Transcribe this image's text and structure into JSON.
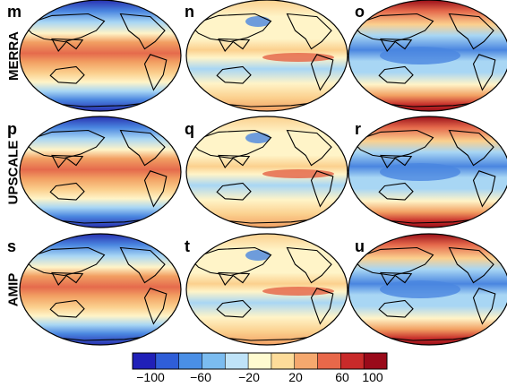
{
  "rows": [
    {
      "label": "MERRA",
      "panels": [
        {
          "letter": "m",
          "style": "warm-belt"
        },
        {
          "letter": "n",
          "style": "anomaly-neutral"
        },
        {
          "letter": "o",
          "style": "polar-warm"
        }
      ]
    },
    {
      "label": "UPSCALE",
      "panels": [
        {
          "letter": "p",
          "style": "warm-belt"
        },
        {
          "letter": "q",
          "style": "anomaly-neutral"
        },
        {
          "letter": "r",
          "style": "polar-warm"
        }
      ]
    },
    {
      "label": "AMIP",
      "panels": [
        {
          "letter": "s",
          "style": "warm-belt"
        },
        {
          "letter": "t",
          "style": "anomaly-neutral"
        },
        {
          "letter": "u",
          "style": "polar-warm"
        }
      ]
    }
  ],
  "colorbar": {
    "colors": [
      "#2020b8",
      "#2f5ed8",
      "#4a8fe6",
      "#7bbcf0",
      "#bfe3f8",
      "#fffbd0",
      "#fddc9a",
      "#f5a86e",
      "#e8684a",
      "#c92a2a",
      "#9a0a1a"
    ],
    "ticks": [
      "−100",
      "−60",
      "−20",
      "20",
      "60",
      "100"
    ]
  },
  "palette": {
    "deep_blue": "#2830b0",
    "blue": "#4a86e0",
    "light_blue": "#a8d6f4",
    "cream": "#fff4c8",
    "light_orange": "#fbd08e",
    "orange": "#f2a063",
    "red_orange": "#e56a4c",
    "red": "#c8302c",
    "dark_red": "#9a0e18"
  }
}
